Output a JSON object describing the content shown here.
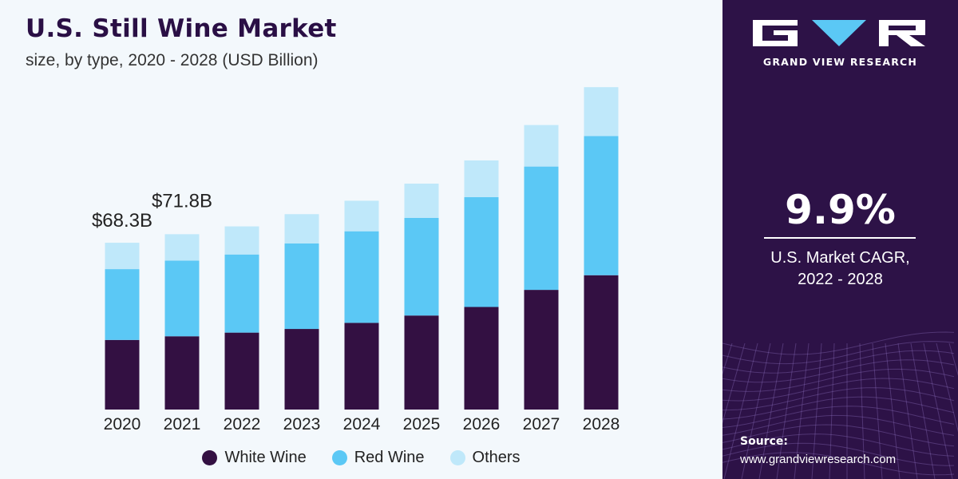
{
  "header": {
    "title": "U.S. Still Wine Market",
    "subtitle": "size, by type, 2020 - 2028 (USD Billion)"
  },
  "colors": {
    "white_wine": "#331042",
    "red_wine": "#5bc8f5",
    "others": "#bfe8fa",
    "panel_bg": "#2d1247"
  },
  "chart_data": {
    "type": "bar",
    "stacked": true,
    "title": "U.S. Still Wine Market",
    "subtitle": "size, by type, 2020 - 2028 (USD Billion)",
    "categories": [
      "2020",
      "2021",
      "2022",
      "2023",
      "2024",
      "2025",
      "2026",
      "2027",
      "2028"
    ],
    "series": [
      {
        "name": "White Wine",
        "color": "#331042",
        "values": [
          28.5,
          30.0,
          31.5,
          33.0,
          35.5,
          38.5,
          42.0,
          49.0,
          55.0
        ]
      },
      {
        "name": "Red Wine",
        "color": "#5bc8f5",
        "values": [
          29.0,
          31.0,
          32.0,
          35.0,
          37.5,
          40.0,
          45.0,
          50.5,
          57.0
        ]
      },
      {
        "name": "Others",
        "color": "#bfe8fa",
        "values": [
          10.8,
          10.8,
          11.5,
          12.0,
          12.5,
          14.0,
          15.0,
          17.0,
          20.0
        ]
      }
    ],
    "data_labels": [
      {
        "category": "2020",
        "text": "$68.3B"
      },
      {
        "category": "2021",
        "text": "$71.8B"
      }
    ],
    "xlabel": "",
    "ylabel": "",
    "ylim": [
      0,
      135
    ],
    "grid": false,
    "legend_position": "bottom"
  },
  "legend": {
    "items": [
      {
        "label": "White Wine",
        "color": "#331042"
      },
      {
        "label": "Red Wine",
        "color": "#5bc8f5"
      },
      {
        "label": "Others",
        "color": "#bfe8fa"
      }
    ]
  },
  "panel": {
    "brand": "GRAND VIEW RESEARCH",
    "cagr_value": "9.9%",
    "cagr_label_line1": "U.S. Market CAGR,",
    "cagr_label_line2": "2022 - 2028",
    "source_label": "Source:",
    "source_url": "www.grandviewresearch.com"
  }
}
